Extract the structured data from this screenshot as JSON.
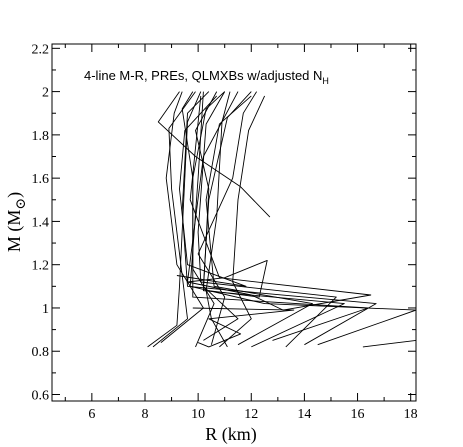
{
  "chart_data": {
    "type": "line",
    "title": "",
    "annotation": "4-line M-R, PREs, QLMXBs w/adjusted N",
    "annotation_subscript": "H",
    "xlabel": "R (km)",
    "ylabel_main": "M (M",
    "ylabel_sub": "⊙",
    "ylabel_close": ")",
    "xlim": [
      4.5,
      18.2
    ],
    "ylim": [
      0.57,
      2.22
    ],
    "x_ticks": [
      "6",
      "8",
      "10",
      "12",
      "14",
      "16",
      "18"
    ],
    "x_tick_values": [
      6,
      8,
      10,
      12,
      14,
      16,
      18
    ],
    "y_ticks": [
      "0.6",
      "0.8",
      "1",
      "1.2",
      "1.4",
      "1.6",
      "1.8",
      "2",
      "2.2"
    ],
    "y_tick_values": [
      0.6,
      0.8,
      1.0,
      1.2,
      1.4,
      1.6,
      1.8,
      2.0,
      2.2
    ],
    "grid": false,
    "line_color": "#000000",
    "series": [
      {
        "points": [
          [
            8.1,
            0.82
          ],
          [
            9.2,
            0.92
          ],
          [
            9.3,
            1.1
          ],
          [
            9.5,
            1.6
          ],
          [
            9.6,
            1.86
          ],
          [
            10.1,
            2.0
          ]
        ]
      },
      {
        "points": [
          [
            8.3,
            0.82
          ],
          [
            9.6,
            0.95
          ],
          [
            9.4,
            1.15
          ],
          [
            9.0,
            1.55
          ],
          [
            8.9,
            1.83
          ],
          [
            9.9,
            2.0
          ]
        ]
      },
      {
        "points": [
          [
            8.6,
            0.84
          ],
          [
            10.2,
            1.0
          ],
          [
            9.2,
            1.2
          ],
          [
            8.8,
            1.6
          ],
          [
            9.1,
            1.9
          ],
          [
            9.4,
            2.0
          ]
        ]
      },
      {
        "points": [
          [
            9.9,
            0.82
          ],
          [
            10.6,
            1.02
          ],
          [
            9.8,
            1.18
          ],
          [
            9.8,
            1.6
          ],
          [
            10.3,
            1.92
          ],
          [
            11.0,
            2.0
          ]
        ]
      },
      {
        "points": [
          [
            10.2,
            0.85
          ],
          [
            11.5,
            0.95
          ],
          [
            10.2,
            1.1
          ],
          [
            10.4,
            1.5
          ],
          [
            11.1,
            1.88
          ],
          [
            12.0,
            2.0
          ]
        ]
      },
      {
        "points": [
          [
            10.5,
            0.83
          ],
          [
            11.0,
            1.05
          ],
          [
            10.0,
            1.25
          ],
          [
            11.3,
            1.6
          ],
          [
            11.7,
            1.9
          ],
          [
            12.2,
            2.0
          ]
        ]
      },
      {
        "points": [
          [
            10.8,
            0.82
          ],
          [
            12.0,
            0.95
          ],
          [
            11.3,
            1.12
          ],
          [
            11.5,
            1.5
          ],
          [
            11.9,
            1.82
          ],
          [
            12.5,
            1.98
          ]
        ]
      },
      {
        "points": [
          [
            11.1,
            0.82
          ],
          [
            10.5,
            0.95
          ],
          [
            10.3,
            1.08
          ],
          [
            10.7,
            1.42
          ],
          [
            10.9,
            1.86
          ],
          [
            11.2,
            2.0
          ]
        ]
      },
      {
        "points": [
          [
            11.5,
            0.83
          ],
          [
            14.3,
            1.02
          ],
          [
            10.6,
            1.1
          ],
          [
            10.3,
            1.5
          ],
          [
            10.8,
            1.85
          ],
          [
            12.0,
            1.98
          ]
        ]
      },
      {
        "points": [
          [
            12.0,
            0.82
          ],
          [
            15.5,
            1.02
          ],
          [
            10.2,
            1.08
          ],
          [
            10.4,
            1.55
          ],
          [
            9.9,
            1.82
          ],
          [
            10.7,
            2.0
          ]
        ]
      },
      {
        "points": [
          [
            12.8,
            0.85
          ],
          [
            16.4,
            1.0
          ],
          [
            9.8,
            1.05
          ],
          [
            9.8,
            1.6
          ],
          [
            9.4,
            1.92
          ],
          [
            9.8,
            2.0
          ]
        ]
      },
      {
        "points": [
          [
            13.3,
            0.82
          ],
          [
            15.2,
            1.05
          ],
          [
            10.1,
            1.12
          ],
          [
            10.0,
            1.35
          ],
          [
            10.3,
            1.85
          ],
          [
            11.0,
            2.0
          ]
        ]
      },
      {
        "points": [
          [
            14.0,
            0.83
          ],
          [
            16.7,
            1.02
          ],
          [
            9.6,
            1.1
          ],
          [
            9.4,
            1.45
          ],
          [
            9.6,
            1.9
          ],
          [
            10.4,
            2.0
          ]
        ]
      },
      {
        "points": [
          [
            14.5,
            0.83
          ],
          [
            18.2,
            0.99
          ],
          [
            12.5,
            1.02
          ],
          [
            9.7,
            1.1
          ],
          [
            10.0,
            1.6
          ],
          [
            10.2,
            2.0
          ]
        ]
      },
      {
        "points": [
          [
            16.2,
            0.82
          ],
          [
            18.2,
            0.85
          ]
        ]
      },
      {
        "points": [
          [
            9.6,
            1.12
          ],
          [
            12.0,
            1.06
          ],
          [
            13.2,
            0.99
          ],
          [
            16.5,
            1.06
          ],
          [
            10.8,
            1.14
          ],
          [
            9.7,
            1.5
          ],
          [
            10.1,
            1.98
          ]
        ]
      },
      {
        "points": [
          [
            10.4,
            1.08
          ],
          [
            12.3,
            1.05
          ],
          [
            12.6,
            1.22
          ],
          [
            11.0,
            1.14
          ],
          [
            9.6,
            1.12
          ],
          [
            10.2,
            1.7
          ],
          [
            11.5,
            2.0
          ]
        ]
      },
      {
        "points": [
          [
            12.7,
            1.42
          ],
          [
            11.6,
            1.56
          ],
          [
            9.9,
            1.7
          ],
          [
            8.5,
            1.86
          ],
          [
            9.3,
            2.0
          ]
        ]
      },
      {
        "points": [
          [
            9.2,
            1.15
          ],
          [
            11.8,
            1.1
          ],
          [
            9.6,
            1.2
          ],
          [
            9.3,
            1.55
          ],
          [
            9.5,
            1.82
          ],
          [
            10.7,
            1.98
          ]
        ]
      },
      {
        "points": [
          [
            9.8,
            1.0
          ],
          [
            13.6,
            0.99
          ],
          [
            10.4,
            0.95
          ],
          [
            11.6,
            0.88
          ],
          [
            10.4,
            0.82
          ],
          [
            10.0,
            0.84
          ]
        ]
      }
    ]
  }
}
